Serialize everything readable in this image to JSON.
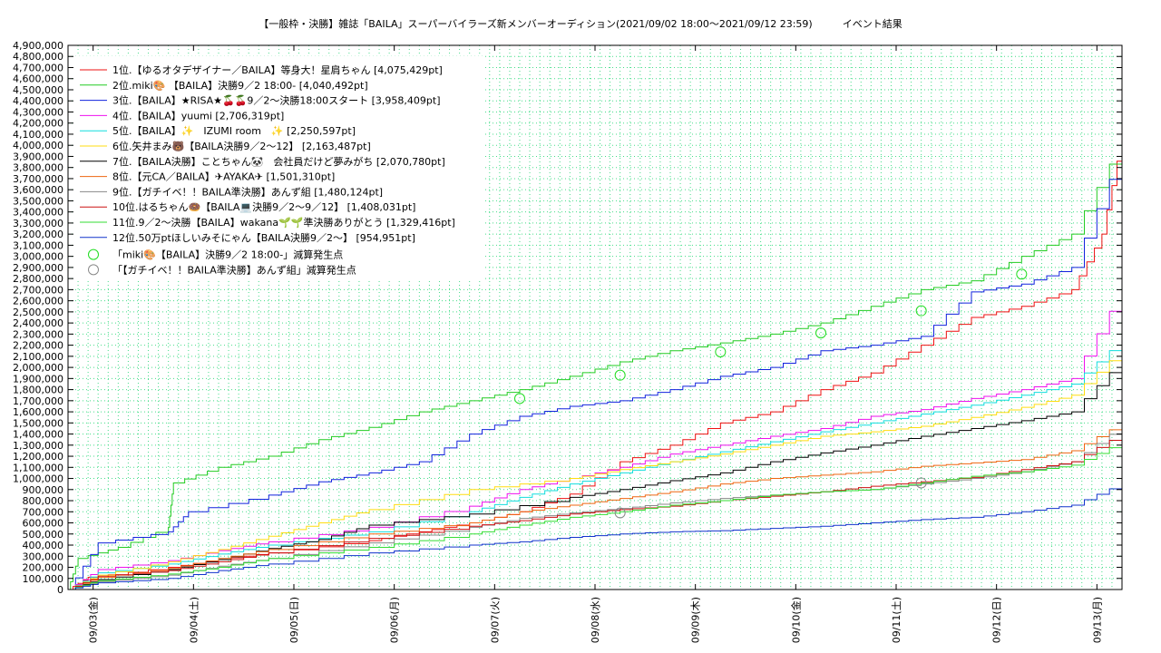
{
  "chart_data": {
    "type": "line",
    "title": "【一般枠・決勝】雑誌「BAILA」スーパーバイラーズ新メンバーオーディション(2021/09/02 18:00〜2021/09/12 23:59)　　　イベント結果",
    "xlabel": "",
    "ylabel": "",
    "ylim": [
      0,
      4900000
    ],
    "x_ticks": [
      "09/03(金)",
      "09/04(土)",
      "09/05(日)",
      "09/06(月)",
      "09/07(火)",
      "09/08(水)",
      "09/09(木)",
      "09/10(金)",
      "09/11(土)",
      "09/12(日)",
      "09/13(月)"
    ],
    "y_ticks": [
      "0",
      "100,000",
      "200,000",
      "300,000",
      "400,000",
      "500,000",
      "600,000",
      "700,000",
      "800,000",
      "900,000",
      "1,000,000",
      "1,100,000",
      "1,200,000",
      "1,300,000",
      "1,400,000",
      "1,500,000",
      "1,600,000",
      "1,700,000",
      "1,800,000",
      "1,900,000",
      "2,000,000",
      "2,100,000",
      "2,200,000",
      "2,300,000",
      "2,400,000",
      "2,500,000",
      "2,600,000",
      "2,700,000",
      "2,800,000",
      "2,900,000",
      "3,000,000",
      "3,100,000",
      "3,200,000",
      "3,300,000",
      "3,400,000",
      "3,500,000",
      "3,600,000",
      "3,700,000",
      "3,800,000",
      "3,900,000",
      "4,000,000",
      "4,100,000",
      "4,200,000",
      "4,300,000",
      "4,400,000",
      "4,500,000",
      "4,600,000",
      "4,700,000",
      "4,800,000",
      "4,900,000"
    ],
    "grid": true,
    "legend_position": "top-left",
    "x_unit": "days after 09/02 18:00",
    "series": [
      {
        "name": "1位.【ゆるオタデザイナー／BAILA】等身大！星肩ちゃん [4,075,429pt]",
        "color": "#ee1111",
        "points": [
          [
            0,
            0
          ],
          [
            0.2,
            110000
          ],
          [
            1,
            200000
          ],
          [
            1.5,
            270000
          ],
          [
            2,
            330000
          ],
          [
            3,
            440000
          ],
          [
            3.5,
            520000
          ],
          [
            4,
            600000
          ],
          [
            4.5,
            700000
          ],
          [
            5,
            860000
          ],
          [
            5.5,
            1150000
          ],
          [
            6,
            1300000
          ],
          [
            6.5,
            1500000
          ],
          [
            7,
            1600000
          ],
          [
            7.5,
            1800000
          ],
          [
            8,
            1950000
          ],
          [
            8.5,
            2200000
          ],
          [
            9,
            2450000
          ],
          [
            9.5,
            2550000
          ],
          [
            10.0,
            2700000
          ],
          [
            10.3,
            3200000
          ],
          [
            10.5,
            4075429
          ]
        ]
      },
      {
        "name": "2位.miki🎨 【BAILA】決勝9／2 18:00- [4,040,492pt]",
        "color": "#22cc22",
        "points": [
          [
            0,
            0
          ],
          [
            0.1,
            280000
          ],
          [
            0.5,
            380000
          ],
          [
            1.0,
            560000
          ],
          [
            1.05,
            960000
          ],
          [
            1.5,
            1100000
          ],
          [
            2,
            1200000
          ],
          [
            2.5,
            1350000
          ],
          [
            3,
            1460000
          ],
          [
            3.5,
            1600000
          ],
          [
            4,
            1700000
          ],
          [
            4.5,
            1800000
          ],
          [
            5,
            1920000
          ],
          [
            5.5,
            2050000
          ],
          [
            6,
            2150000
          ],
          [
            6.5,
            2220000
          ],
          [
            7,
            2300000
          ],
          [
            7.5,
            2400000
          ],
          [
            8,
            2550000
          ],
          [
            8.5,
            2700000
          ],
          [
            9,
            2780000
          ],
          [
            9.5,
            3000000
          ],
          [
            10.0,
            3200000
          ],
          [
            10.5,
            4040492
          ]
        ]
      },
      {
        "name": "3位.【BAILA】★RISA★🍒🍒9／2〜決勝18:00スタート [3,958,409pt]",
        "color": "#1122dd",
        "points": [
          [
            0,
            0
          ],
          [
            0.3,
            420000
          ],
          [
            1,
            520000
          ],
          [
            1.2,
            700000
          ],
          [
            2,
            850000
          ],
          [
            2.5,
            970000
          ],
          [
            3,
            1050000
          ],
          [
            3.5,
            1150000
          ],
          [
            4,
            1400000
          ],
          [
            4.5,
            1560000
          ],
          [
            5,
            1650000
          ],
          [
            5.5,
            1700000
          ],
          [
            6,
            1800000
          ],
          [
            6.5,
            1920000
          ],
          [
            7,
            2000000
          ],
          [
            7.5,
            2150000
          ],
          [
            8,
            2200000
          ],
          [
            8.5,
            2280000
          ],
          [
            9,
            2680000
          ],
          [
            9.5,
            2750000
          ],
          [
            10.0,
            2900000
          ],
          [
            10.5,
            3958409
          ]
        ]
      },
      {
        "name": "4位.【BAILA】yuumi [2,706,319pt]",
        "color": "#ee11ee",
        "points": [
          [
            0,
            0
          ],
          [
            0.3,
            180000
          ],
          [
            1,
            260000
          ],
          [
            1.5,
            350000
          ],
          [
            2,
            430000
          ],
          [
            3,
            560000
          ],
          [
            4,
            750000
          ],
          [
            4.5,
            900000
          ],
          [
            5,
            1000000
          ],
          [
            5.5,
            1100000
          ],
          [
            6,
            1220000
          ],
          [
            6.5,
            1300000
          ],
          [
            7,
            1380000
          ],
          [
            7.5,
            1450000
          ],
          [
            8,
            1560000
          ],
          [
            8.5,
            1620000
          ],
          [
            9,
            1720000
          ],
          [
            9.5,
            1800000
          ],
          [
            10.0,
            1900000
          ],
          [
            10.5,
            2706319
          ]
        ]
      },
      {
        "name": "5位.【BAILA】✨　IZUMI room　✨ [2,250,597pt]",
        "color": "#11dddd",
        "points": [
          [
            0,
            0
          ],
          [
            0.3,
            150000
          ],
          [
            1,
            230000
          ],
          [
            1.5,
            320000
          ],
          [
            2,
            400000
          ],
          [
            3,
            520000
          ],
          [
            4,
            700000
          ],
          [
            4.5,
            830000
          ],
          [
            5,
            950000
          ],
          [
            5.5,
            1050000
          ],
          [
            6,
            1150000
          ],
          [
            6.5,
            1240000
          ],
          [
            7,
            1330000
          ],
          [
            7.5,
            1420000
          ],
          [
            8,
            1500000
          ],
          [
            8.5,
            1580000
          ],
          [
            9,
            1660000
          ],
          [
            9.5,
            1750000
          ],
          [
            10.0,
            1850000
          ],
          [
            10.5,
            2250597
          ]
        ]
      },
      {
        "name": "6位.矢井まみ🐻【BAILA決勝9／2〜12】 [2,163,487pt]",
        "color": "#ffdd11",
        "points": [
          [
            0,
            0
          ],
          [
            0.3,
            130000
          ],
          [
            1,
            250000
          ],
          [
            1.5,
            360000
          ],
          [
            2,
            480000
          ],
          [
            2.5,
            600000
          ],
          [
            3,
            720000
          ],
          [
            4,
            900000
          ],
          [
            5,
            1000000
          ],
          [
            5.5,
            1080000
          ],
          [
            6,
            1150000
          ],
          [
            6.5,
            1220000
          ],
          [
            7,
            1300000
          ],
          [
            7.5,
            1380000
          ],
          [
            8,
            1420000
          ],
          [
            8.5,
            1470000
          ],
          [
            9,
            1550000
          ],
          [
            9.5,
            1640000
          ],
          [
            10.0,
            1750000
          ],
          [
            10.5,
            2163487
          ]
        ]
      },
      {
        "name": "7位.【BAILA決勝】ことちゃん🐼　会社員だけど夢みがち [2,070,780pt]",
        "color": "#000000",
        "points": [
          [
            0,
            0
          ],
          [
            0.3,
            90000
          ],
          [
            1,
            180000
          ],
          [
            1.5,
            270000
          ],
          [
            2,
            370000
          ],
          [
            2.5,
            450000
          ],
          [
            3,
            580000
          ],
          [
            4,
            680000
          ],
          [
            5,
            830000
          ],
          [
            5.5,
            900000
          ],
          [
            6,
            980000
          ],
          [
            6.5,
            1050000
          ],
          [
            7,
            1150000
          ],
          [
            7.5,
            1230000
          ],
          [
            8,
            1300000
          ],
          [
            8.5,
            1380000
          ],
          [
            9,
            1450000
          ],
          [
            9.5,
            1520000
          ],
          [
            10.0,
            1600000
          ],
          [
            10.5,
            2070780
          ]
        ]
      },
      {
        "name": "8位.【元CA／BAILA】✈AYAKA✈ [1,501,310pt]",
        "color": "#ee6611",
        "points": [
          [
            0,
            0
          ],
          [
            0.3,
            110000
          ],
          [
            1,
            190000
          ],
          [
            1.5,
            280000
          ],
          [
            2,
            360000
          ],
          [
            3,
            500000
          ],
          [
            4,
            600000
          ],
          [
            4.5,
            700000
          ],
          [
            5,
            760000
          ],
          [
            5.5,
            820000
          ],
          [
            6,
            880000
          ],
          [
            6.5,
            950000
          ],
          [
            7,
            1000000
          ],
          [
            7.5,
            1030000
          ],
          [
            8,
            1060000
          ],
          [
            8.5,
            1110000
          ],
          [
            9,
            1140000
          ],
          [
            9.5,
            1170000
          ],
          [
            10.0,
            1250000
          ],
          [
            10.5,
            1501310
          ]
        ]
      },
      {
        "name": "9位.【ガチイベ！！BAILA準決勝】あんず組 [1,480,124pt]",
        "color": "#888888",
        "points": [
          [
            0,
            0
          ],
          [
            0.3,
            70000
          ],
          [
            1,
            130000
          ],
          [
            1.5,
            210000
          ],
          [
            2,
            280000
          ],
          [
            3,
            420000
          ],
          [
            4,
            560000
          ],
          [
            4.5,
            640000
          ],
          [
            5,
            690000
          ],
          [
            5.5,
            730000
          ],
          [
            6,
            780000
          ],
          [
            6.5,
            820000
          ],
          [
            7,
            850000
          ],
          [
            7.5,
            880000
          ],
          [
            8,
            900000
          ],
          [
            8.5,
            950000
          ],
          [
            9,
            1000000
          ],
          [
            9.5,
            1060000
          ],
          [
            10.0,
            1150000
          ],
          [
            10.5,
            1480124
          ]
        ]
      },
      {
        "name": "10位.はるちゃん🍩【BAILA💻決勝9／2〜9／12】 [1,408,031pt]",
        "color": "#cc1111",
        "points": [
          [
            0,
            0
          ],
          [
            0.3,
            120000
          ],
          [
            1,
            170000
          ],
          [
            1.5,
            250000
          ],
          [
            2,
            330000
          ],
          [
            3,
            460000
          ],
          [
            4,
            570000
          ],
          [
            4.5,
            620000
          ],
          [
            5,
            680000
          ],
          [
            5.5,
            720000
          ],
          [
            6,
            750000
          ],
          [
            6.5,
            800000
          ],
          [
            7,
            840000
          ],
          [
            7.5,
            880000
          ],
          [
            8,
            930000
          ],
          [
            8.5,
            970000
          ],
          [
            9,
            1010000
          ],
          [
            9.5,
            1080000
          ],
          [
            10.0,
            1150000
          ],
          [
            10.5,
            1408031
          ]
        ]
      },
      {
        "name": "11位.9／2〜決勝【BAILA】wakana🌱🌱準決勝ありがとう [1,329,416pt]",
        "color": "#33dd33",
        "points": [
          [
            0,
            0
          ],
          [
            0.3,
            80000
          ],
          [
            1,
            140000
          ],
          [
            1.5,
            200000
          ],
          [
            2,
            280000
          ],
          [
            3,
            380000
          ],
          [
            4,
            500000
          ],
          [
            4.5,
            580000
          ],
          [
            5,
            650000
          ],
          [
            5.5,
            700000
          ],
          [
            6,
            760000
          ],
          [
            6.5,
            800000
          ],
          [
            7,
            850000
          ],
          [
            7.5,
            880000
          ],
          [
            8,
            900000
          ],
          [
            8.5,
            960000
          ],
          [
            9,
            1020000
          ],
          [
            9.5,
            1060000
          ],
          [
            10.0,
            1120000
          ],
          [
            10.5,
            1329416
          ]
        ]
      },
      {
        "name": "12位.50万ptほしいみそにゃん【BAILA決勝9／2〜】 [954,951pt]",
        "color": "#1133cc",
        "points": [
          [
            0,
            0
          ],
          [
            0.3,
            60000
          ],
          [
            1,
            100000
          ],
          [
            1.5,
            170000
          ],
          [
            2,
            230000
          ],
          [
            3,
            330000
          ],
          [
            4,
            400000
          ],
          [
            4.5,
            430000
          ],
          [
            5,
            470000
          ],
          [
            5.5,
            500000
          ],
          [
            6,
            520000
          ],
          [
            6.5,
            530000
          ],
          [
            7,
            550000
          ],
          [
            7.5,
            570000
          ],
          [
            8,
            600000
          ],
          [
            8.5,
            630000
          ],
          [
            9,
            650000
          ],
          [
            9.5,
            700000
          ],
          [
            10.0,
            760000
          ],
          [
            10.5,
            954951
          ]
        ]
      }
    ],
    "markers": [
      {
        "name": "「miki🎨【BAILA】決勝9／2 18:00-」減算発生点",
        "color": "#22dd22",
        "points": [
          [
            4.5,
            1720000
          ],
          [
            5.5,
            1930000
          ],
          [
            6.5,
            2140000
          ],
          [
            7.5,
            2310000
          ],
          [
            8.5,
            2510000
          ],
          [
            9.5,
            2840000
          ]
        ]
      },
      {
        "name": "「【ガチイベ！！BAILA準決勝】あんず組」減算発生点",
        "color": "#888888",
        "points": [
          [
            5.5,
            690000
          ],
          [
            8.5,
            960000
          ]
        ]
      }
    ],
    "x_range": [
      0,
      10.05
    ]
  }
}
